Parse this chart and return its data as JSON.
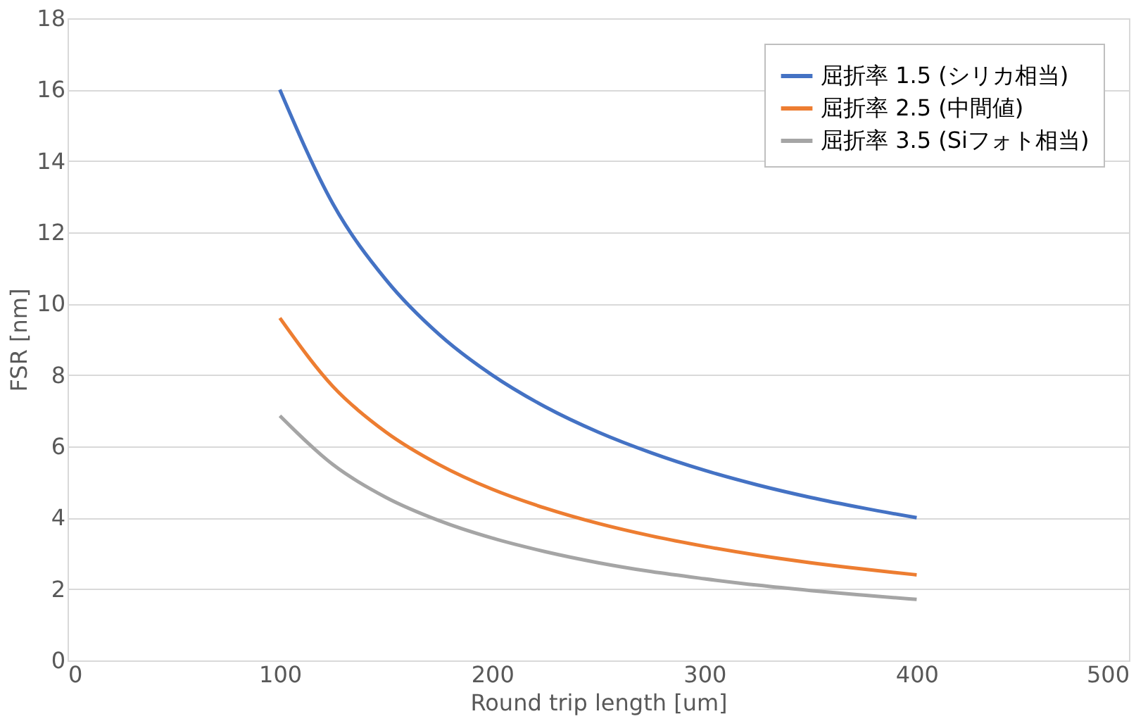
{
  "chart_data": {
    "type": "line",
    "xlabel": "Round trip length [um]",
    "ylabel": "FSR [nm]",
    "x": [
      100,
      125,
      150,
      175,
      200,
      225,
      250,
      275,
      300,
      325,
      350,
      375,
      400
    ],
    "series": [
      {
        "name": "屈折率 1.5 (シリカ相当)",
        "color": "#4472c4",
        "values": [
          16,
          12.8,
          10.67,
          9.14,
          8,
          7.11,
          6.4,
          5.82,
          5.33,
          4.92,
          4.57,
          4.27,
          4
        ]
      },
      {
        "name": "屈折率 2.5 (中間値)",
        "color": "#ed7d31",
        "values": [
          9.6,
          7.68,
          6.4,
          5.49,
          4.8,
          4.27,
          3.84,
          3.49,
          3.2,
          2.95,
          2.74,
          2.56,
          2.4
        ]
      },
      {
        "name": "屈折率 3.5 (Siフォト相当)",
        "color": "#a5a5a5",
        "values": [
          6.86,
          5.49,
          4.57,
          3.92,
          3.43,
          3.05,
          2.74,
          2.49,
          2.29,
          2.11,
          1.96,
          1.83,
          1.71
        ]
      }
    ],
    "xlim": [
      0,
      500
    ],
    "xticks": [
      0,
      100,
      200,
      300,
      400,
      500
    ],
    "ylim": [
      0,
      18
    ],
    "yticks": [
      0,
      2,
      4,
      6,
      8,
      10,
      12,
      14,
      16,
      18
    ],
    "grid": "y",
    "legend": "top right",
    "line_style": "solid",
    "marker": "none"
  }
}
